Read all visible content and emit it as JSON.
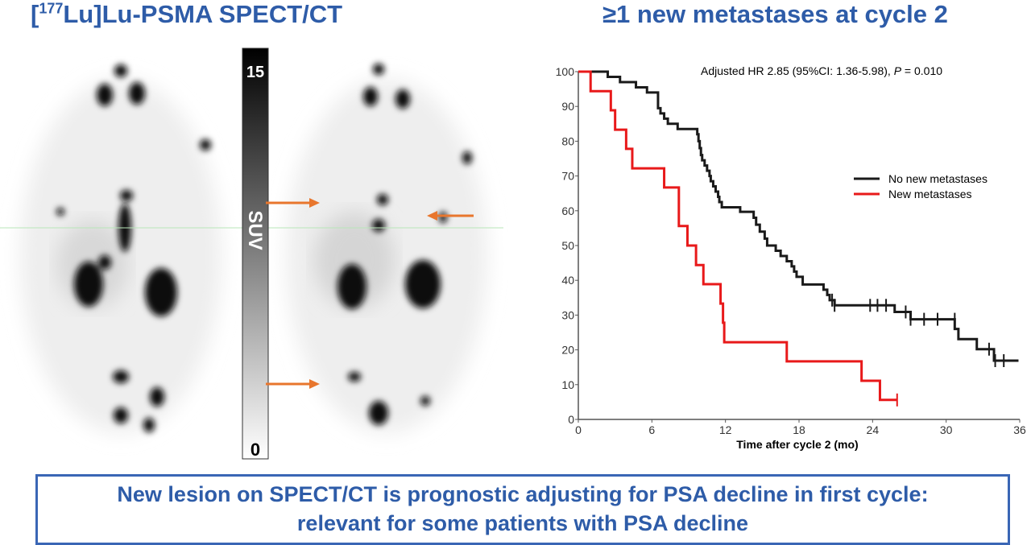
{
  "left_title": {
    "bracket_open": "[",
    "isotope_mass": "177",
    "rest": "Lu]Lu-PSMA SPECT/CT"
  },
  "right_title": "≥1 new metastases at cycle 2",
  "colorbar": {
    "max_label": "15",
    "min_label": "0",
    "unit_label": "SUV"
  },
  "arrow_color": "#e8762d",
  "takeaway": {
    "line1": "New lesion on SPECT/CT is prognostic adjusting for PSA decline in first cycle:",
    "line2": "relevant for some patients with PSA decline"
  },
  "chart_data": {
    "type": "line",
    "subtype": "kaplan-meier step",
    "annotation": "Adjusted HR 2.85 (95%CI: 1.36-5.98), P = 0.010",
    "annotation_parts": {
      "pre": "Adjusted HR 2.85 (95%CI: 1.36-5.98), ",
      "p": "P",
      "post": " = 0.010"
    },
    "xlabel": "Time after cycle 2 (mo)",
    "ylabel": "",
    "xlim": [
      0,
      36
    ],
    "ylim": [
      0,
      100
    ],
    "xticks": [
      "0",
      "6",
      "12",
      "18",
      "24",
      "30",
      "36"
    ],
    "yticks": [
      "0",
      "10",
      "20",
      "30",
      "40",
      "50",
      "60",
      "70",
      "80",
      "90",
      "100"
    ],
    "grid": false,
    "legend_position": "right-middle",
    "series": [
      {
        "name": "No new metastases",
        "color": "#1a1a1a",
        "steps": [
          [
            0,
            100
          ],
          [
            2.4,
            98.5
          ],
          [
            3.4,
            97
          ],
          [
            4.7,
            95.5
          ],
          [
            5.6,
            94
          ],
          [
            6.5,
            89.5
          ],
          [
            6.7,
            88
          ],
          [
            7.0,
            86.5
          ],
          [
            7.3,
            85
          ],
          [
            8.1,
            83.5
          ],
          [
            9.7,
            82
          ],
          [
            9.8,
            80
          ],
          [
            9.9,
            78
          ],
          [
            10.0,
            76
          ],
          [
            10.1,
            74.5
          ],
          [
            10.3,
            73
          ],
          [
            10.5,
            71.5
          ],
          [
            10.7,
            70
          ],
          [
            10.8,
            68.5
          ],
          [
            11.0,
            67
          ],
          [
            11.2,
            65.5
          ],
          [
            11.4,
            64
          ],
          [
            11.5,
            62.5
          ],
          [
            11.7,
            61
          ],
          [
            13.2,
            59.7
          ],
          [
            14.3,
            58
          ],
          [
            14.5,
            56
          ],
          [
            14.8,
            54
          ],
          [
            15.2,
            52
          ],
          [
            15.4,
            50
          ],
          [
            16.1,
            48.5
          ],
          [
            16.5,
            47
          ],
          [
            17.0,
            45.5
          ],
          [
            17.4,
            44
          ],
          [
            17.6,
            42.5
          ],
          [
            17.8,
            41
          ],
          [
            18.3,
            38.8
          ],
          [
            20.0,
            37.3
          ],
          [
            20.3,
            35.8
          ],
          [
            20.5,
            34.3
          ],
          [
            20.9,
            32.8
          ],
          [
            25.8,
            30.9
          ],
          [
            27.1,
            28.8
          ],
          [
            30.7,
            26
          ],
          [
            31.0,
            23.1
          ],
          [
            32.5,
            20.2
          ],
          [
            33.9,
            16.9
          ],
          [
            35.9,
            16.9
          ]
        ],
        "censored": [
          [
            20.7,
            34.3
          ],
          [
            20.9,
            32.8
          ],
          [
            23.8,
            32.8
          ],
          [
            24.4,
            32.8
          ],
          [
            25.1,
            32.8
          ],
          [
            26.7,
            30.9
          ],
          [
            27.1,
            28.8
          ],
          [
            28.2,
            28.8
          ],
          [
            29.3,
            28.8
          ],
          [
            30.7,
            28.8
          ],
          [
            33.5,
            20.2
          ],
          [
            34.0,
            16.9
          ],
          [
            34.7,
            16.9
          ]
        ]
      },
      {
        "name": "New metastases",
        "color": "#e8191a",
        "steps": [
          [
            0,
            100
          ],
          [
            1.0,
            94.4
          ],
          [
            2.65,
            88.9
          ],
          [
            3.0,
            83.3
          ],
          [
            3.9,
            77.8
          ],
          [
            4.4,
            72.2
          ],
          [
            7.0,
            66.7
          ],
          [
            8.2,
            55.6
          ],
          [
            8.9,
            50
          ],
          [
            9.6,
            44.4
          ],
          [
            10.2,
            38.9
          ],
          [
            11.6,
            33.3
          ],
          [
            11.8,
            27.8
          ],
          [
            11.9,
            22.2
          ],
          [
            17.0,
            16.7
          ],
          [
            23.1,
            11.1
          ],
          [
            24.6,
            5.6
          ],
          [
            26.0,
            5.6
          ]
        ],
        "censored": [
          [
            26.0,
            5.6
          ]
        ]
      }
    ]
  }
}
